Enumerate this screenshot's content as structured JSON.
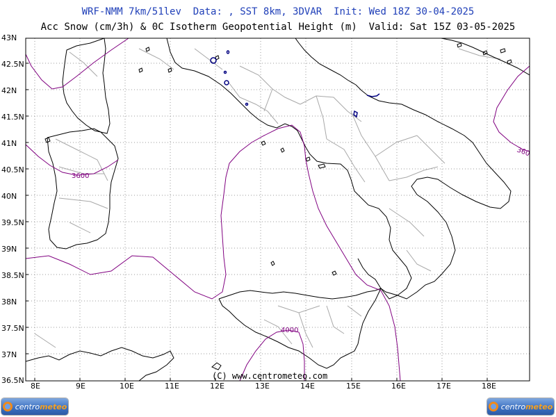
{
  "header": {
    "title_line1": "WRF-NMM 7km/51lev  Data: , SST 8km, 3DVAR  Init: Wed 18Z 30-04-2025",
    "title_line2": "Acc Snow (cm/3h) & 0C Isotherm Geopotential Height (m)  Valid: Sat 15Z 03-05-2025"
  },
  "axes": {
    "lat_labels": [
      "43N",
      "42.5N",
      "42N",
      "41.5N",
      "41N",
      "40.5N",
      "40N",
      "39.5N",
      "39N",
      "38.5N",
      "38N",
      "37.5N",
      "37N",
      "36.5N"
    ],
    "lon_labels": [
      "8E",
      "9E",
      "10E",
      "11E",
      "12E",
      "13E",
      "14E",
      "15E",
      "16E",
      "17E",
      "18E"
    ]
  },
  "contours": {
    "label_3600": "3600",
    "label_3600_right": "360",
    "label_4000": "4000",
    "color": "#800080"
  },
  "footer": {
    "copyright": "(C) www.centrometeo.com"
  },
  "logos": {
    "left": {
      "text_a": "centro",
      "text_b": "meteo"
    },
    "right": {
      "text_a": "centro",
      "text_b": "meteo"
    }
  },
  "colors": {
    "title1": "#1f3fb8",
    "coast": "#000000",
    "borders": "#a0a0a0",
    "isotherm": "#800080",
    "snow": "#000080"
  }
}
